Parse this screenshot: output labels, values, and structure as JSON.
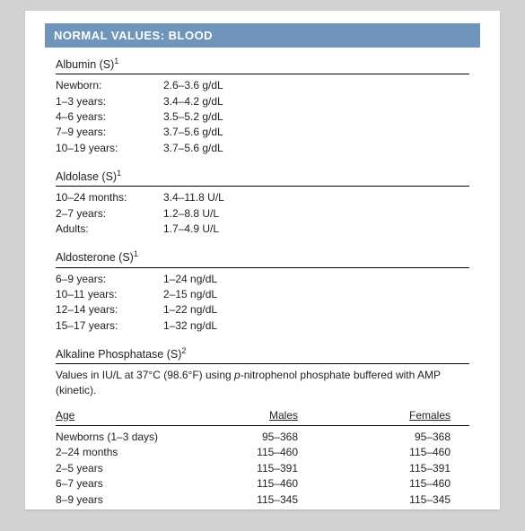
{
  "header": "NORMAL VALUES: BLOOD",
  "sections": [
    {
      "title": "Albumin (S)",
      "sup": "1",
      "rows": [
        {
          "k": "Newborn:",
          "v": "2.6–3.6 g/dL"
        },
        {
          "k": "1–3 years:",
          "v": "3.4–4.2 g/dL"
        },
        {
          "k": "4–6 years:",
          "v": "3.5–5.2 g/dL"
        },
        {
          "k": "7–9 years:",
          "v": "3.7–5.6 g/dL"
        },
        {
          "k": "10–19 years:",
          "v": "3.7–5.6 g/dL"
        }
      ]
    },
    {
      "title": "Aldolase (S)",
      "sup": "1",
      "rows": [
        {
          "k": "10–24 months:",
          "v": "3.4–11.8 U/L"
        },
        {
          "k": "2–7 years:",
          "v": "1.2–8.8 U/L"
        },
        {
          "k": "Adults:",
          "v": "1.7–4.9 U/L"
        }
      ]
    },
    {
      "title": "Aldosterone (S)",
      "sup": "1",
      "rows": [
        {
          "k": "6–9 years:",
          "v": "1–24 ng/dL"
        },
        {
          "k": "10–11 years:",
          "v": "2–15 ng/dL"
        },
        {
          "k": "12–14 years:",
          "v": "1–22 ng/dL"
        },
        {
          "k": "15–17 years:",
          "v": "1–32 ng/dL"
        }
      ]
    }
  ],
  "alkphos": {
    "title": "Alkaline Phosphatase (S)",
    "sup": "2",
    "note_before": "Values in IU/L at 37°C (98.6°F) using ",
    "note_italic": "p",
    "note_after": "-nitrophenol phosphate buffered with AMP (kinetic).",
    "head": {
      "age": "Age",
      "m": "Males",
      "f": "Females"
    },
    "rows": [
      {
        "age": "Newborns (1–3 days)",
        "m": "95–368",
        "f": "95–368"
      },
      {
        "age": "2–24 months",
        "m": "115–460",
        "f": "115–460"
      },
      {
        "age": "2–5 years",
        "m": "115–391",
        "f": "115–391"
      },
      {
        "age": "6–7 years",
        "m": "115–460",
        "f": "115–460"
      },
      {
        "age": "8–9 years",
        "m": "115–345",
        "f": "115–345"
      }
    ]
  }
}
